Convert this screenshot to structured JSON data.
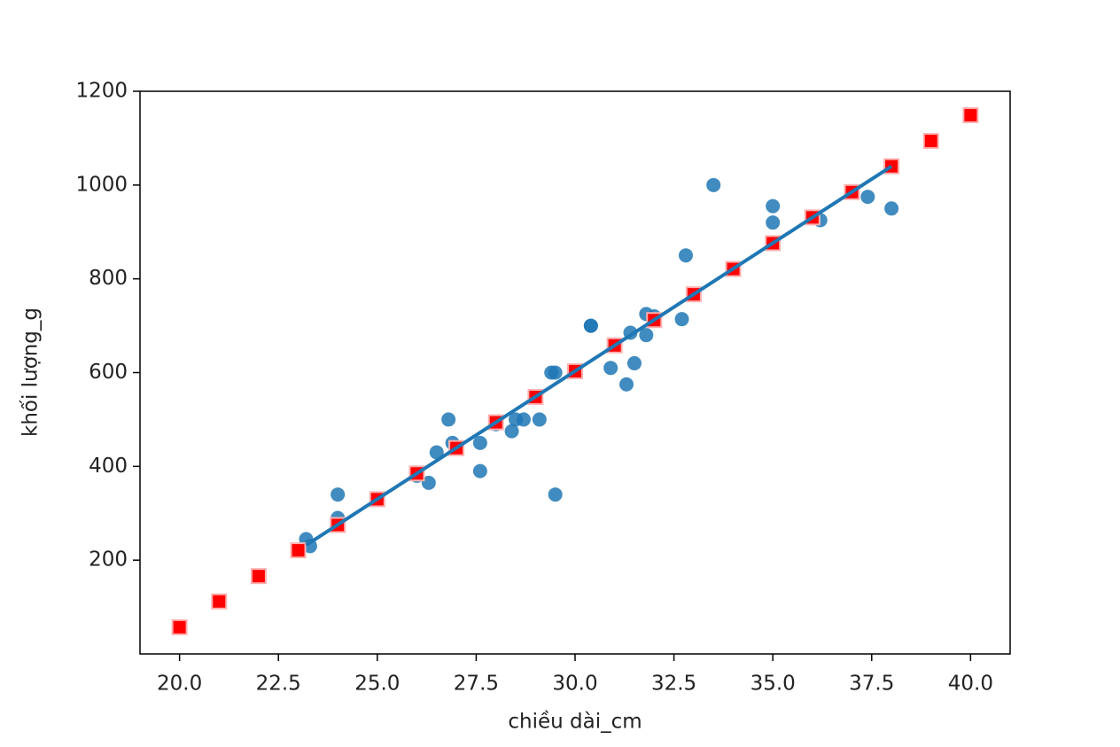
{
  "chart_data": {
    "type": "scatter",
    "x_label": "chiều dài_cm",
    "y_label": "khối lượng_g",
    "xlim": [
      19,
      41
    ],
    "ylim": [
      0,
      1200
    ],
    "xticks": [
      {
        "value": 20,
        "label": "20.0"
      },
      {
        "value": 22.5,
        "label": "22.5"
      },
      {
        "value": 25,
        "label": "25.0"
      },
      {
        "value": 27.5,
        "label": "27.5"
      },
      {
        "value": 30,
        "label": "30.0"
      },
      {
        "value": 32.5,
        "label": "32.5"
      },
      {
        "value": 35,
        "label": "35.0"
      },
      {
        "value": 37.5,
        "label": "37.5"
      },
      {
        "value": 40,
        "label": "40.0"
      }
    ],
    "yticks": [
      200,
      400,
      600,
      800,
      1000,
      1200
    ],
    "grid": false,
    "series": [
      {
        "type": "scatter",
        "marker": "circle",
        "color": "#1f77b4",
        "x": [
          23.2,
          23.3,
          24,
          24,
          24,
          26,
          26.3,
          26.5,
          26.8,
          26.9,
          27,
          27.6,
          27.6,
          28,
          28.4,
          28.5,
          28.7,
          29.1,
          29.4,
          29.5,
          29.5,
          30.4,
          30.4,
          30.9,
          31.3,
          31.4,
          31.5,
          31.8,
          31.8,
          32,
          32.7,
          32.8,
          33.5,
          35,
          35,
          36.2,
          37.4,
          38
        ],
        "values": [
          245,
          230,
          340,
          290,
          275,
          380,
          365,
          430,
          500,
          450,
          440,
          390,
          450,
          490,
          475,
          500,
          500,
          500,
          600,
          600,
          340,
          700,
          700,
          610,
          575,
          685,
          620,
          680,
          725,
          720,
          714,
          850,
          1000,
          955,
          920,
          925,
          975,
          950
        ]
      },
      {
        "type": "scatter",
        "marker": "square",
        "color": "#ff0000",
        "x": [
          20,
          21,
          22,
          23,
          24,
          25,
          26,
          27,
          28,
          29,
          30,
          31,
          32,
          33,
          34,
          35,
          36,
          37,
          38,
          39,
          40
        ],
        "values": [
          57,
          112,
          166,
          221,
          275,
          330,
          385,
          439,
          494,
          548,
          603,
          658,
          712,
          767,
          821,
          876,
          931,
          985,
          1040,
          1094,
          1149
        ]
      },
      {
        "type": "line",
        "color": "#1f77b4",
        "x": [
          23.2,
          38
        ],
        "values": [
          232,
          1040
        ]
      }
    ]
  }
}
